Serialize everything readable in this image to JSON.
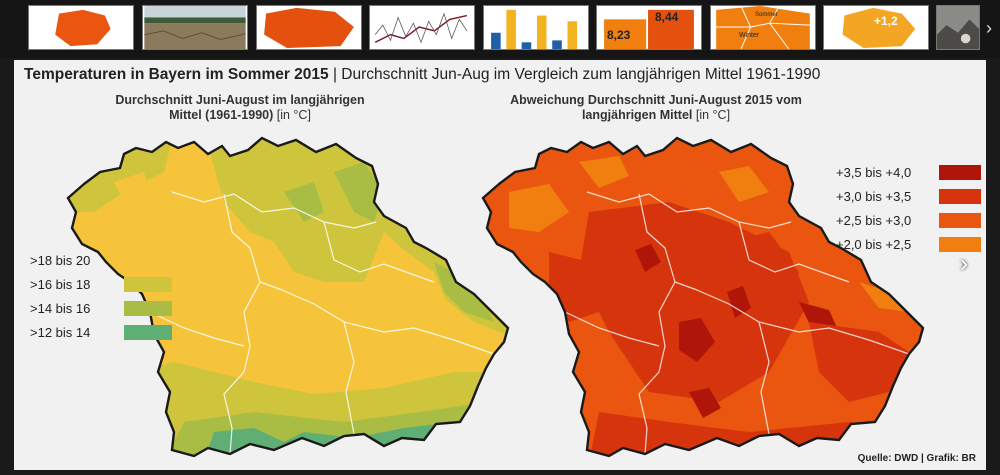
{
  "thumbnails": [
    {
      "name": "thumb-map-orange",
      "label": ""
    },
    {
      "name": "thumb-dry-field",
      "label": ""
    },
    {
      "name": "thumb-map-red",
      "label": ""
    },
    {
      "name": "thumb-line-chart",
      "label": ""
    },
    {
      "name": "thumb-bar-chart",
      "label": ""
    },
    {
      "name": "thumb-value-boxes",
      "label_a": "8,44",
      "label_b": "8,23"
    },
    {
      "name": "thumb-seasons",
      "label_a": "Winter",
      "label_b": "Sommer"
    },
    {
      "name": "thumb-map-value",
      "label": "+1,2"
    },
    {
      "name": "thumb-photo",
      "label": ""
    }
  ],
  "title_bold": "Temperaturen in Bayern im Sommer 2015",
  "title_rest": " | Durchschnitt Jun-Aug im Vergleich zum langjährigen Mittel 1961-1990",
  "left_map": {
    "title_line1": "Durchschnitt Juni-August im langjährigen",
    "title_line2": "Mittel (1961-1990)",
    "unit": " [in °C]",
    "legend": [
      {
        "label": ">18 bis 20",
        "color": "#f6c43b"
      },
      {
        "label": ">16 bis 18",
        "color": "#cfc53c"
      },
      {
        "label": ">14 bis 16",
        "color": "#a9bd45"
      },
      {
        "label": ">12 bis 14",
        "color": "#5fae73"
      }
    ]
  },
  "right_map": {
    "title_line1": "Abweichung Durchschnitt Juni-August 2015 vom",
    "title_line2": "langjährigen Mittel",
    "unit": " [in °C]",
    "legend": [
      {
        "label": "+3,5 bis +4,0",
        "color": "#b0150a"
      },
      {
        "label": "+3,0 bis +3,5",
        "color": "#d6340c"
      },
      {
        "label": "+2,5 bis +3,0",
        "color": "#ea560f"
      },
      {
        "label": "+2,0 bis +2,5",
        "color": "#f07f10"
      }
    ]
  },
  "source": "Quelle: DWD | Grafik: BR",
  "nav": {
    "next_glyph": "›",
    "strip_next_glyph": "›"
  }
}
